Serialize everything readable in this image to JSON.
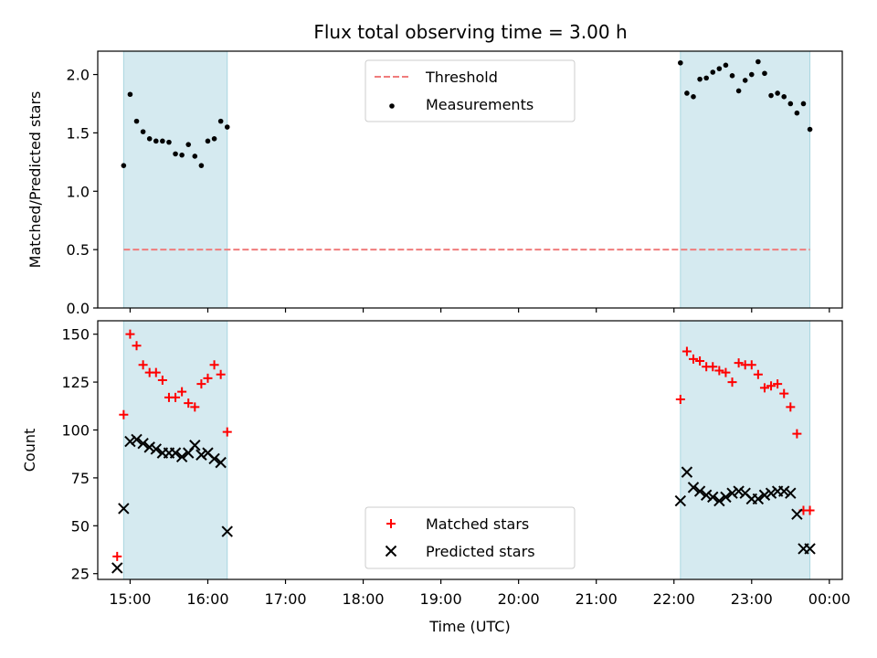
{
  "title": "Flux total observing time = 3.00 h",
  "chart_data": [
    {
      "type": "scatter",
      "ylabel": "Matched/Predicted stars",
      "ylim": [
        0,
        2.2
      ],
      "yticks": [
        0.0,
        0.5,
        1.0,
        1.5,
        2.0
      ],
      "ytick_labels": [
        "0.0",
        "0.5",
        "1.0",
        "1.5",
        "2.0"
      ],
      "shaded_intervals": [
        [
          "14:55",
          "16:15"
        ],
        [
          "22:05",
          "23:45"
        ]
      ],
      "threshold": {
        "name": "Threshold",
        "y": 0.5,
        "color": "#f07c7c",
        "x_start": "14:55",
        "x_end": "23:45"
      },
      "series": [
        {
          "name": "Measurements",
          "marker": "dot",
          "color": "#000000",
          "x": [
            "14:55",
            "15:00",
            "15:05",
            "15:10",
            "15:15",
            "15:20",
            "15:25",
            "15:30",
            "15:35",
            "15:40",
            "15:45",
            "15:50",
            "15:55",
            "16:00",
            "16:05",
            "16:10",
            "16:15",
            "22:05",
            "22:10",
            "22:15",
            "22:20",
            "22:25",
            "22:30",
            "22:35",
            "22:40",
            "22:45",
            "22:50",
            "22:55",
            "23:00",
            "23:05",
            "23:10",
            "23:15",
            "23:20",
            "23:25",
            "23:30",
            "23:35",
            "23:40",
            "23:45"
          ],
          "y": [
            1.22,
            1.83,
            1.6,
            1.51,
            1.45,
            1.43,
            1.43,
            1.42,
            1.32,
            1.31,
            1.4,
            1.3,
            1.22,
            1.43,
            1.45,
            1.6,
            1.55,
            2.1,
            1.84,
            1.81,
            1.96,
            1.97,
            2.02,
            2.05,
            2.08,
            1.99,
            1.86,
            1.95,
            2.0,
            2.11,
            2.01,
            1.82,
            1.84,
            1.81,
            1.75,
            1.67,
            1.75,
            1.53
          ]
        }
      ],
      "legend": {
        "location": "upper center",
        "entries": [
          "Threshold",
          "Measurements"
        ]
      }
    },
    {
      "type": "scatter",
      "xlabel": "Time (UTC)",
      "ylabel": "Count",
      "ylim": [
        22,
        157
      ],
      "yticks": [
        25,
        50,
        75,
        100,
        125,
        150
      ],
      "ytick_labels": [
        "25",
        "50",
        "75",
        "100",
        "125",
        "150"
      ],
      "xlim": [
        "14:35",
        "24:10"
      ],
      "xticks": [
        "15:00",
        "16:00",
        "17:00",
        "18:00",
        "19:00",
        "20:00",
        "21:00",
        "22:00",
        "23:00",
        "24:00"
      ],
      "xtick_labels": [
        "15:00",
        "16:00",
        "17:00",
        "18:00",
        "19:00",
        "20:00",
        "21:00",
        "22:00",
        "23:00",
        "00:00"
      ],
      "shaded_intervals": [
        [
          "14:55",
          "16:15"
        ],
        [
          "22:05",
          "23:45"
        ]
      ],
      "series": [
        {
          "name": "Matched stars",
          "marker": "plus",
          "color": "#ff0000",
          "x": [
            "14:50",
            "14:55",
            "15:00",
            "15:05",
            "15:10",
            "15:15",
            "15:20",
            "15:25",
            "15:30",
            "15:35",
            "15:40",
            "15:45",
            "15:50",
            "15:55",
            "16:00",
            "16:05",
            "16:10",
            "16:15",
            "22:05",
            "22:10",
            "22:15",
            "22:20",
            "22:25",
            "22:30",
            "22:35",
            "22:40",
            "22:45",
            "22:50",
            "22:55",
            "23:00",
            "23:05",
            "23:10",
            "23:15",
            "23:20",
            "23:25",
            "23:30",
            "23:35",
            "23:40",
            "23:45"
          ],
          "y": [
            34,
            108,
            150,
            144,
            134,
            130,
            130,
            126,
            117,
            117,
            120,
            114,
            112,
            124,
            127,
            134,
            129,
            99,
            116,
            141,
            137,
            136,
            133,
            133,
            131,
            130,
            125,
            135,
            134,
            134,
            129,
            122,
            123,
            124,
            119,
            112,
            98,
            58,
            58
          ],
          "x_fix": "shifted"
        },
        {
          "name": "Predicted stars",
          "marker": "x",
          "color": "#000000",
          "x": [
            "14:50",
            "14:55",
            "15:00",
            "15:05",
            "15:10",
            "15:15",
            "15:20",
            "15:25",
            "15:30",
            "15:35",
            "15:40",
            "15:45",
            "15:50",
            "15:55",
            "16:00",
            "16:05",
            "16:10",
            "16:15",
            "22:05",
            "22:10",
            "22:15",
            "22:20",
            "22:25",
            "22:30",
            "22:35",
            "22:40",
            "22:45",
            "22:50",
            "22:55",
            "23:00",
            "23:05",
            "23:10",
            "23:15",
            "23:20",
            "23:25",
            "23:30",
            "23:35",
            "23:40",
            "23:45"
          ],
          "y": [
            28,
            59,
            94,
            95,
            93,
            91,
            90,
            88,
            88,
            88,
            86,
            88,
            92,
            87,
            88,
            85,
            83,
            47,
            63,
            78,
            70,
            68,
            66,
            65,
            63,
            65,
            67,
            68,
            67,
            64,
            64,
            66,
            67,
            68,
            68,
            67,
            56,
            38,
            38
          ]
        }
      ],
      "legend": {
        "location": "lower center",
        "entries": [
          "Matched stars",
          "Predicted stars"
        ]
      }
    }
  ],
  "colors": {
    "shade": "#d5eaf0",
    "shade_edge": "#a9d6e0",
    "threshold": "#f07c7c",
    "matched": "#ff0000",
    "predicted": "#000000",
    "measurement": "#000000"
  }
}
